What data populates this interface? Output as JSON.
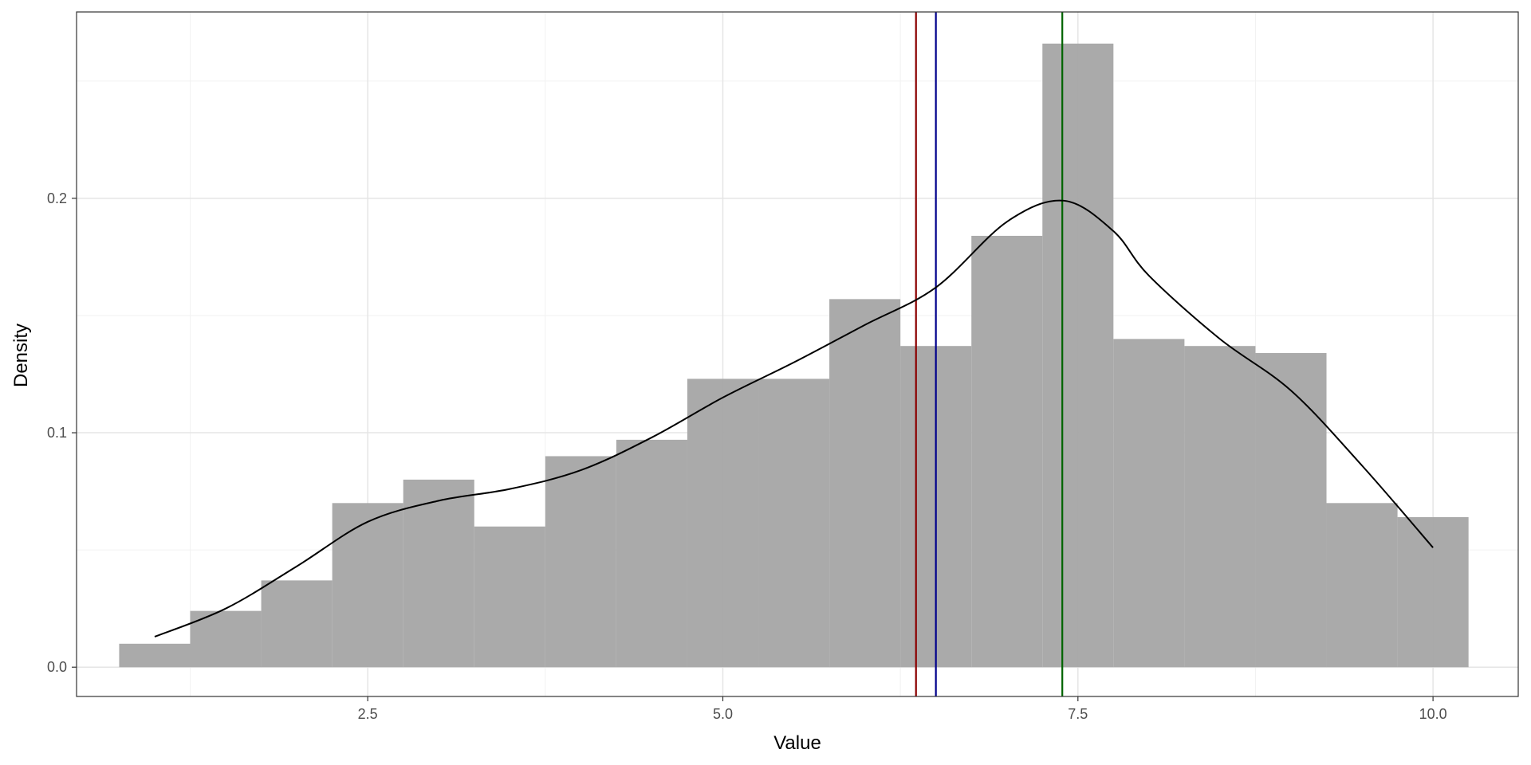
{
  "chart_data": {
    "type": "histogram",
    "xlabel": "Value",
    "ylabel": "Density",
    "xlim": [
      0.45,
      10.6
    ],
    "ylim": [
      -0.0125,
      0.2795
    ],
    "x_ticks": [
      {
        "value": 2.5,
        "label": "2.5"
      },
      {
        "value": 5.0,
        "label": "5.0"
      },
      {
        "value": 7.5,
        "label": "7.5"
      },
      {
        "value": 10.0,
        "label": "10.0"
      }
    ],
    "y_ticks": [
      {
        "value": 0.0,
        "label": "0.0"
      },
      {
        "value": 0.1,
        "label": "0.1"
      },
      {
        "value": 0.2,
        "label": "0.2"
      }
    ],
    "x_minor_ticks": [
      1.25,
      3.75,
      6.25,
      8.75
    ],
    "y_minor_ticks": [
      0.05,
      0.15,
      0.25
    ],
    "grid": true,
    "bins": [
      {
        "x0": 0.75,
        "x1": 1.25,
        "density": 0.01
      },
      {
        "x0": 1.25,
        "x1": 1.75,
        "density": 0.024
      },
      {
        "x0": 1.75,
        "x1": 2.25,
        "density": 0.037
      },
      {
        "x0": 2.25,
        "x1": 2.75,
        "density": 0.07
      },
      {
        "x0": 2.75,
        "x1": 3.25,
        "density": 0.08
      },
      {
        "x0": 3.25,
        "x1": 3.75,
        "density": 0.06
      },
      {
        "x0": 3.75,
        "x1": 4.25,
        "density": 0.09
      },
      {
        "x0": 4.25,
        "x1": 4.75,
        "density": 0.097
      },
      {
        "x0": 4.75,
        "x1": 5.25,
        "density": 0.123
      },
      {
        "x0": 5.25,
        "x1": 5.75,
        "density": 0.123
      },
      {
        "x0": 5.75,
        "x1": 6.25,
        "density": 0.157
      },
      {
        "x0": 6.25,
        "x1": 6.75,
        "density": 0.137
      },
      {
        "x0": 6.75,
        "x1": 7.25,
        "density": 0.184
      },
      {
        "x0": 7.25,
        "x1": 7.75,
        "density": 0.266
      },
      {
        "x0": 7.75,
        "x1": 8.25,
        "density": 0.14
      },
      {
        "x0": 8.25,
        "x1": 8.75,
        "density": 0.137
      },
      {
        "x0": 8.75,
        "x1": 9.25,
        "density": 0.134
      },
      {
        "x0": 9.25,
        "x1": 9.75,
        "density": 0.07
      },
      {
        "x0": 9.75,
        "x1": 10.25,
        "density": 0.064
      }
    ],
    "density_curve": {
      "x": [
        1.0,
        1.5,
        2.0,
        2.5,
        3.0,
        3.5,
        4.0,
        4.5,
        5.0,
        5.5,
        6.0,
        6.5,
        7.0,
        7.4,
        7.75,
        8.0,
        8.5,
        9.0,
        9.5,
        10.0
      ],
      "y": [
        0.013,
        0.025,
        0.043,
        0.062,
        0.071,
        0.076,
        0.084,
        0.098,
        0.115,
        0.13,
        0.146,
        0.162,
        0.19,
        0.199,
        0.186,
        0.167,
        0.14,
        0.118,
        0.086,
        0.051
      ]
    },
    "vertical_lines": [
      {
        "x": 6.36,
        "color": "#8b0000"
      },
      {
        "x": 6.5,
        "color": "#00008b"
      },
      {
        "x": 7.39,
        "color": "#006400"
      }
    ],
    "colors": {
      "bar_fill": "#a5a5a5",
      "curve": "#000000",
      "grid_major": "#e5e5e5",
      "grid_minor": "#f2f2f2",
      "panel_border": "#333333",
      "tick_text": "#4d4d4d"
    }
  }
}
